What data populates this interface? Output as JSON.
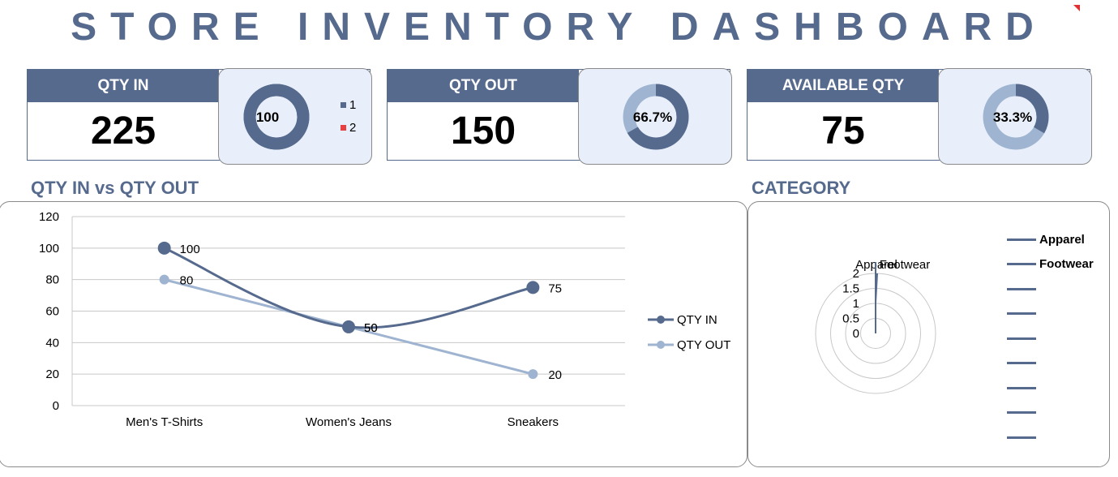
{
  "title": "STORE INVENTORY DASHBOARD",
  "colors": {
    "primary": "#566a8e",
    "secondary": "#9fb4d0",
    "accent_red": "#e84040",
    "card_bg": "#e8effb"
  },
  "kpis": [
    {
      "label": "QTY IN",
      "value": "225",
      "donut_label": "100",
      "donut_fraction": 1.0,
      "legend": [
        {
          "label": "1",
          "color": "#566a8e"
        },
        {
          "label": "2",
          "color": "#e84040"
        }
      ]
    },
    {
      "label": "QTY OUT",
      "value": "150",
      "donut_label": "66.7%",
      "donut_fraction": 0.667
    },
    {
      "label": "AVAILABLE QTY",
      "value": "75",
      "donut_label": "33.3%",
      "donut_fraction": 0.333
    }
  ],
  "line_section_title": "QTY IN vs QTY OUT",
  "category_section_title": "CATEGORY",
  "chart_data": [
    {
      "type": "line",
      "categories": [
        "Men's T-Shirts",
        "Women's Jeans",
        "Sneakers"
      ],
      "series": [
        {
          "name": "QTY IN",
          "values": [
            100,
            50,
            75
          ],
          "labels": [
            "100",
            "50",
            "75"
          ]
        },
        {
          "name": "QTY OUT",
          "values": [
            80,
            50,
            20
          ],
          "labels": [
            "80",
            "50",
            "20"
          ]
        }
      ],
      "ylim": [
        0,
        120
      ],
      "yticks": [
        "0",
        "20",
        "40",
        "60",
        "80",
        "100",
        "120"
      ],
      "legend": "right",
      "grid": true
    },
    {
      "type": "radar",
      "categories": [
        "Apparel",
        "Footwear"
      ],
      "rlim": [
        0,
        2
      ],
      "rticks": [
        "0",
        "0.5",
        "1",
        "1.5",
        "2"
      ],
      "series_labels": [
        "Apparel",
        "Footwear"
      ],
      "legend": "right"
    }
  ]
}
